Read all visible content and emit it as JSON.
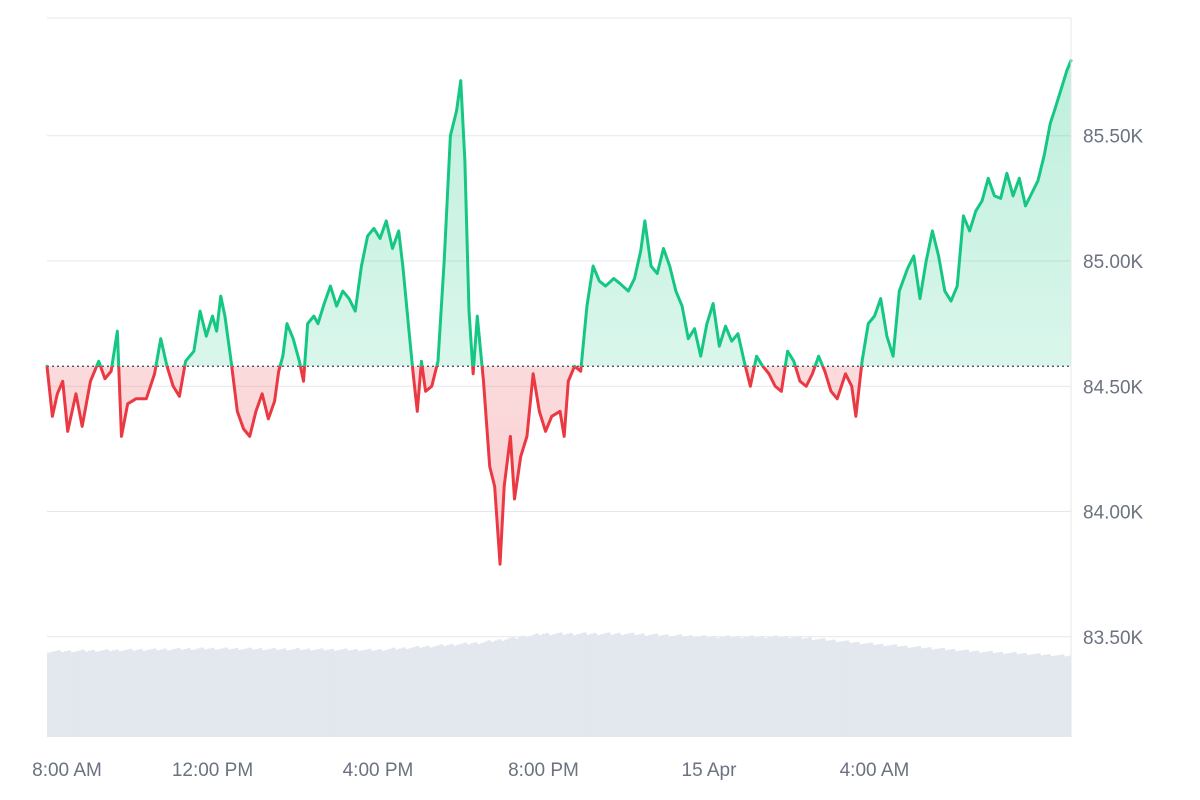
{
  "chart_data": {
    "type": "area",
    "title": "",
    "xlabel": "",
    "ylabel": "",
    "baseline": 84.58,
    "ylim": [
      83.1,
      85.97
    ],
    "y_ticks": [
      {
        "value": 85.5,
        "label": "85.50K"
      },
      {
        "value": 85.0,
        "label": "85.00K"
      },
      {
        "value": 84.5,
        "label": "84.50K"
      },
      {
        "value": 84.0,
        "label": "84.00K"
      },
      {
        "value": 83.5,
        "label": "83.50K"
      }
    ],
    "x_ticks": [
      {
        "hour": 0,
        "label": "8:00 AM"
      },
      {
        "hour": 4,
        "label": "12:00 PM"
      },
      {
        "hour": 8,
        "label": "4:00 PM"
      },
      {
        "hour": 12,
        "label": "8:00 PM"
      },
      {
        "hour": 16,
        "label": "15 Apr"
      },
      {
        "hour": 20,
        "label": "4:00 AM"
      }
    ],
    "price_series": [
      [
        0.0,
        84.58
      ],
      [
        0.13,
        84.38
      ],
      [
        0.25,
        84.47
      ],
      [
        0.38,
        84.52
      ],
      [
        0.5,
        84.32
      ],
      [
        0.7,
        84.47
      ],
      [
        0.85,
        84.34
      ],
      [
        1.05,
        84.52
      ],
      [
        1.25,
        84.6
      ],
      [
        1.4,
        84.53
      ],
      [
        1.55,
        84.56
      ],
      [
        1.7,
        84.72
      ],
      [
        1.8,
        84.3
      ],
      [
        1.95,
        84.43
      ],
      [
        2.15,
        84.45
      ],
      [
        2.4,
        84.45
      ],
      [
        2.6,
        84.55
      ],
      [
        2.75,
        84.69
      ],
      [
        2.9,
        84.58
      ],
      [
        3.05,
        84.5
      ],
      [
        3.2,
        84.46
      ],
      [
        3.35,
        84.6
      ],
      [
        3.55,
        84.64
      ],
      [
        3.7,
        84.8
      ],
      [
        3.85,
        84.7
      ],
      [
        4.0,
        84.78
      ],
      [
        4.1,
        84.72
      ],
      [
        4.2,
        84.86
      ],
      [
        4.3,
        84.78
      ],
      [
        4.45,
        84.6
      ],
      [
        4.6,
        84.4
      ],
      [
        4.75,
        84.33
      ],
      [
        4.9,
        84.3
      ],
      [
        5.05,
        84.4
      ],
      [
        5.2,
        84.47
      ],
      [
        5.35,
        84.37
      ],
      [
        5.5,
        84.44
      ],
      [
        5.6,
        84.56
      ],
      [
        5.7,
        84.62
      ],
      [
        5.8,
        84.75
      ],
      [
        5.95,
        84.69
      ],
      [
        6.1,
        84.6
      ],
      [
        6.2,
        84.52
      ],
      [
        6.3,
        84.75
      ],
      [
        6.45,
        84.78
      ],
      [
        6.55,
        84.75
      ],
      [
        6.7,
        84.83
      ],
      [
        6.85,
        84.9
      ],
      [
        7.0,
        84.82
      ],
      [
        7.15,
        84.88
      ],
      [
        7.3,
        84.85
      ],
      [
        7.45,
        84.8
      ],
      [
        7.6,
        84.98
      ],
      [
        7.75,
        85.1
      ],
      [
        7.9,
        85.13
      ],
      [
        8.05,
        85.09
      ],
      [
        8.2,
        85.16
      ],
      [
        8.35,
        85.05
      ],
      [
        8.5,
        85.12
      ],
      [
        8.6,
        84.98
      ],
      [
        8.75,
        84.72
      ],
      [
        8.85,
        84.55
      ],
      [
        8.95,
        84.4
      ],
      [
        9.05,
        84.6
      ],
      [
        9.15,
        84.48
      ],
      [
        9.3,
        84.5
      ],
      [
        9.45,
        84.6
      ],
      [
        9.6,
        85.0
      ],
      [
        9.75,
        85.5
      ],
      [
        9.9,
        85.6
      ],
      [
        10.0,
        85.72
      ],
      [
        10.1,
        85.4
      ],
      [
        10.2,
        84.8
      ],
      [
        10.3,
        84.55
      ],
      [
        10.4,
        84.78
      ],
      [
        10.55,
        84.52
      ],
      [
        10.7,
        84.18
      ],
      [
        10.82,
        84.1
      ],
      [
        10.95,
        83.79
      ],
      [
        11.05,
        84.1
      ],
      [
        11.2,
        84.3
      ],
      [
        11.3,
        84.05
      ],
      [
        11.45,
        84.22
      ],
      [
        11.6,
        84.3
      ],
      [
        11.75,
        84.55
      ],
      [
        11.9,
        84.4
      ],
      [
        12.05,
        84.32
      ],
      [
        12.2,
        84.38
      ],
      [
        12.4,
        84.4
      ],
      [
        12.5,
        84.3
      ],
      [
        12.6,
        84.52
      ],
      [
        12.75,
        84.58
      ],
      [
        12.9,
        84.56
      ],
      [
        13.05,
        84.82
      ],
      [
        13.2,
        84.98
      ],
      [
        13.35,
        84.92
      ],
      [
        13.5,
        84.9
      ],
      [
        13.7,
        84.93
      ],
      [
        13.85,
        84.91
      ],
      [
        14.05,
        84.88
      ],
      [
        14.2,
        84.93
      ],
      [
        14.35,
        85.04
      ],
      [
        14.45,
        85.16
      ],
      [
        14.6,
        84.98
      ],
      [
        14.75,
        84.95
      ],
      [
        14.9,
        85.05
      ],
      [
        15.05,
        84.98
      ],
      [
        15.2,
        84.88
      ],
      [
        15.35,
        84.82
      ],
      [
        15.5,
        84.69
      ],
      [
        15.65,
        84.73
      ],
      [
        15.8,
        84.62
      ],
      [
        15.95,
        84.75
      ],
      [
        16.1,
        84.83
      ],
      [
        16.25,
        84.66
      ],
      [
        16.4,
        84.74
      ],
      [
        16.55,
        84.68
      ],
      [
        16.7,
        84.71
      ],
      [
        16.85,
        84.6
      ],
      [
        17.0,
        84.5
      ],
      [
        17.15,
        84.62
      ],
      [
        17.3,
        84.58
      ],
      [
        17.45,
        84.55
      ],
      [
        17.6,
        84.5
      ],
      [
        17.75,
        84.48
      ],
      [
        17.9,
        84.64
      ],
      [
        18.05,
        84.6
      ],
      [
        18.2,
        84.52
      ],
      [
        18.35,
        84.5
      ],
      [
        18.5,
        84.55
      ],
      [
        18.65,
        84.62
      ],
      [
        18.8,
        84.56
      ],
      [
        18.95,
        84.48
      ],
      [
        19.1,
        84.45
      ],
      [
        19.3,
        84.55
      ],
      [
        19.45,
        84.5
      ],
      [
        19.55,
        84.38
      ],
      [
        19.7,
        84.6
      ],
      [
        19.85,
        84.75
      ],
      [
        20.0,
        84.78
      ],
      [
        20.15,
        84.85
      ],
      [
        20.3,
        84.7
      ],
      [
        20.45,
        84.62
      ],
      [
        20.6,
        84.88
      ],
      [
        20.8,
        84.97
      ],
      [
        20.95,
        85.02
      ],
      [
        21.1,
        84.85
      ],
      [
        21.25,
        85.0
      ],
      [
        21.4,
        85.12
      ],
      [
        21.55,
        85.02
      ],
      [
        21.7,
        84.88
      ],
      [
        21.85,
        84.84
      ],
      [
        22.0,
        84.9
      ],
      [
        22.15,
        85.18
      ],
      [
        22.3,
        85.12
      ],
      [
        22.45,
        85.2
      ],
      [
        22.6,
        85.24
      ],
      [
        22.75,
        85.33
      ],
      [
        22.9,
        85.26
      ],
      [
        23.05,
        85.25
      ],
      [
        23.2,
        85.35
      ],
      [
        23.35,
        85.26
      ],
      [
        23.5,
        85.33
      ],
      [
        23.65,
        85.22
      ],
      [
        23.8,
        85.27
      ],
      [
        23.95,
        85.32
      ],
      [
        24.1,
        85.42
      ],
      [
        24.25,
        85.55
      ],
      [
        24.35,
        85.6
      ],
      [
        24.5,
        85.68
      ],
      [
        24.65,
        85.76
      ],
      [
        24.75,
        85.8
      ]
    ],
    "volume_note": "light gray volume bars behind the price line",
    "volume_profile": [
      [
        0,
        0.58
      ],
      [
        4,
        0.6
      ],
      [
        8,
        0.59
      ],
      [
        10.5,
        0.64
      ],
      [
        12,
        0.7
      ],
      [
        14,
        0.7
      ],
      [
        16,
        0.68
      ],
      [
        18,
        0.68
      ],
      [
        20,
        0.63
      ],
      [
        22.5,
        0.58
      ],
      [
        24.75,
        0.55
      ]
    ],
    "colors": {
      "up_line": "#16c784",
      "down_line": "#ea3943",
      "up_fill": "#16c784",
      "down_fill": "#ea3943",
      "grid": "#e5e7eb",
      "volume": "#e3e7ee",
      "axis_text": "#6b7280"
    }
  }
}
